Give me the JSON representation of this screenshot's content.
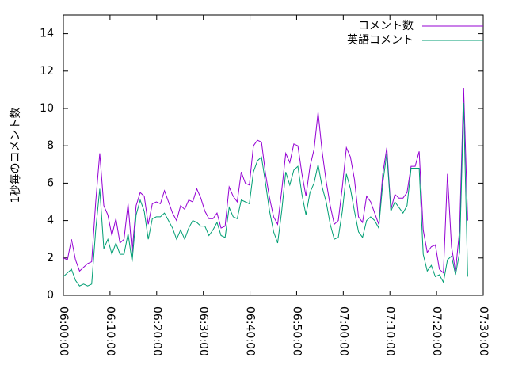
{
  "chart_data": {
    "type": "line",
    "ylabel": "1秒毎のコメント数",
    "x": [
      "06:00:00",
      "06:00:52",
      "06:01:44",
      "06:02:36",
      "06:03:28",
      "06:04:20",
      "06:05:12",
      "06:06:04",
      "06:06:56",
      "06:07:48",
      "06:08:40",
      "06:09:32",
      "06:10:24",
      "06:11:16",
      "06:12:08",
      "06:13:00",
      "06:13:52",
      "06:14:44",
      "06:15:36",
      "06:16:28",
      "06:17:20",
      "06:18:12",
      "06:19:04",
      "06:19:56",
      "06:20:48",
      "06:21:40",
      "06:22:32",
      "06:23:24",
      "06:24:16",
      "06:25:08",
      "06:26:00",
      "06:26:52",
      "06:27:44",
      "06:28:36",
      "06:29:28",
      "06:30:20",
      "06:31:12",
      "06:32:04",
      "06:32:56",
      "06:33:48",
      "06:34:40",
      "06:35:32",
      "06:36:24",
      "06:37:16",
      "06:38:08",
      "06:39:00",
      "06:39:52",
      "06:40:44",
      "06:41:36",
      "06:42:28",
      "06:43:20",
      "06:44:12",
      "06:45:04",
      "06:45:56",
      "06:46:48",
      "06:47:40",
      "06:48:32",
      "06:49:24",
      "06:50:16",
      "06:51:08",
      "06:52:00",
      "06:52:52",
      "06:53:44",
      "06:54:36",
      "06:55:28",
      "06:56:20",
      "06:57:12",
      "06:58:04",
      "06:58:56",
      "06:59:48",
      "07:00:40",
      "07:01:32",
      "07:02:24",
      "07:03:16",
      "07:04:08",
      "07:05:00",
      "07:05:52",
      "07:06:44",
      "07:07:36",
      "07:08:28",
      "07:09:20",
      "07:10:12",
      "07:11:04",
      "07:11:56",
      "07:12:48",
      "07:13:40",
      "07:14:32",
      "07:15:24",
      "07:16:16",
      "07:17:08",
      "07:18:00",
      "07:18:52",
      "07:19:44",
      "07:20:36",
      "07:21:28",
      "07:22:20",
      "07:23:12",
      "07:24:04",
      "07:24:56",
      "07:25:48",
      "07:26:40"
    ],
    "series": [
      {
        "name": "コメント数",
        "color": "#9400d3",
        "values": [
          2.0,
          1.9,
          3.0,
          1.9,
          1.3,
          1.5,
          1.7,
          1.8,
          5.0,
          7.6,
          4.8,
          4.3,
          3.2,
          4.1,
          2.8,
          3.0,
          4.9,
          2.3,
          4.8,
          5.5,
          5.3,
          3.8,
          4.9,
          5.0,
          4.9,
          5.6,
          5.0,
          4.4,
          4.0,
          4.8,
          4.6,
          5.1,
          5.0,
          5.7,
          5.2,
          4.5,
          4.1,
          4.1,
          4.4,
          3.6,
          3.7,
          5.8,
          5.3,
          5.0,
          6.6,
          6.0,
          5.9,
          8.0,
          8.3,
          8.2,
          6.5,
          5.2,
          4.2,
          3.8,
          5.6,
          7.6,
          7.1,
          8.1,
          8.0,
          6.5,
          5.3,
          6.9,
          7.8,
          9.8,
          7.7,
          6.1,
          4.8,
          3.8,
          4.0,
          5.8,
          7.9,
          7.4,
          6.2,
          4.2,
          3.9,
          5.3,
          5.0,
          4.4,
          3.8,
          6.5,
          7.9,
          4.6,
          5.4,
          5.2,
          5.2,
          5.5,
          6.9,
          6.9,
          7.7,
          3.5,
          2.3,
          2.6,
          2.7,
          1.4,
          1.2,
          6.5,
          2.6,
          1.3,
          3.5,
          11.1,
          4.0
        ]
      },
      {
        "name": "英語コメント",
        "color": "#009e73",
        "values": [
          1.0,
          1.2,
          1.4,
          0.8,
          0.5,
          0.6,
          0.5,
          0.6,
          3.5,
          5.7,
          2.5,
          3.0,
          2.2,
          2.8,
          2.2,
          2.2,
          3.3,
          1.8,
          4.3,
          5.1,
          4.5,
          3.0,
          4.1,
          4.2,
          4.2,
          4.4,
          4.0,
          3.6,
          3.0,
          3.5,
          3.0,
          3.6,
          4.0,
          3.9,
          3.7,
          3.7,
          3.2,
          3.5,
          3.9,
          3.2,
          3.1,
          4.7,
          4.2,
          4.1,
          5.1,
          5.0,
          4.9,
          6.6,
          7.2,
          7.4,
          6.0,
          4.5,
          3.4,
          2.8,
          4.5,
          6.6,
          5.9,
          6.7,
          6.9,
          5.4,
          4.3,
          5.5,
          6.0,
          7.0,
          5.8,
          5.0,
          3.8,
          3.0,
          3.1,
          4.5,
          6.5,
          5.7,
          4.5,
          3.4,
          3.1,
          4.0,
          4.2,
          4.0,
          3.6,
          6.0,
          7.6,
          4.5,
          5.0,
          4.7,
          4.4,
          4.8,
          6.8,
          6.8,
          6.8,
          2.2,
          1.3,
          1.6,
          1.0,
          1.1,
          0.7,
          1.9,
          2.1,
          1.1,
          2.3,
          10.3,
          1.0
        ]
      }
    ],
    "xlim": [
      "06:00:00",
      "07:30:00"
    ],
    "xticks": [
      "06:00:00",
      "06:10:00",
      "06:20:00",
      "06:30:00",
      "06:40:00",
      "06:50:00",
      "07:00:00",
      "07:10:00",
      "07:20:00",
      "07:30:00"
    ],
    "ylim": [
      0,
      15
    ],
    "yticks": [
      0,
      2,
      4,
      6,
      8,
      10,
      12,
      14
    ],
    "legend": "top-right",
    "grid": false
  }
}
